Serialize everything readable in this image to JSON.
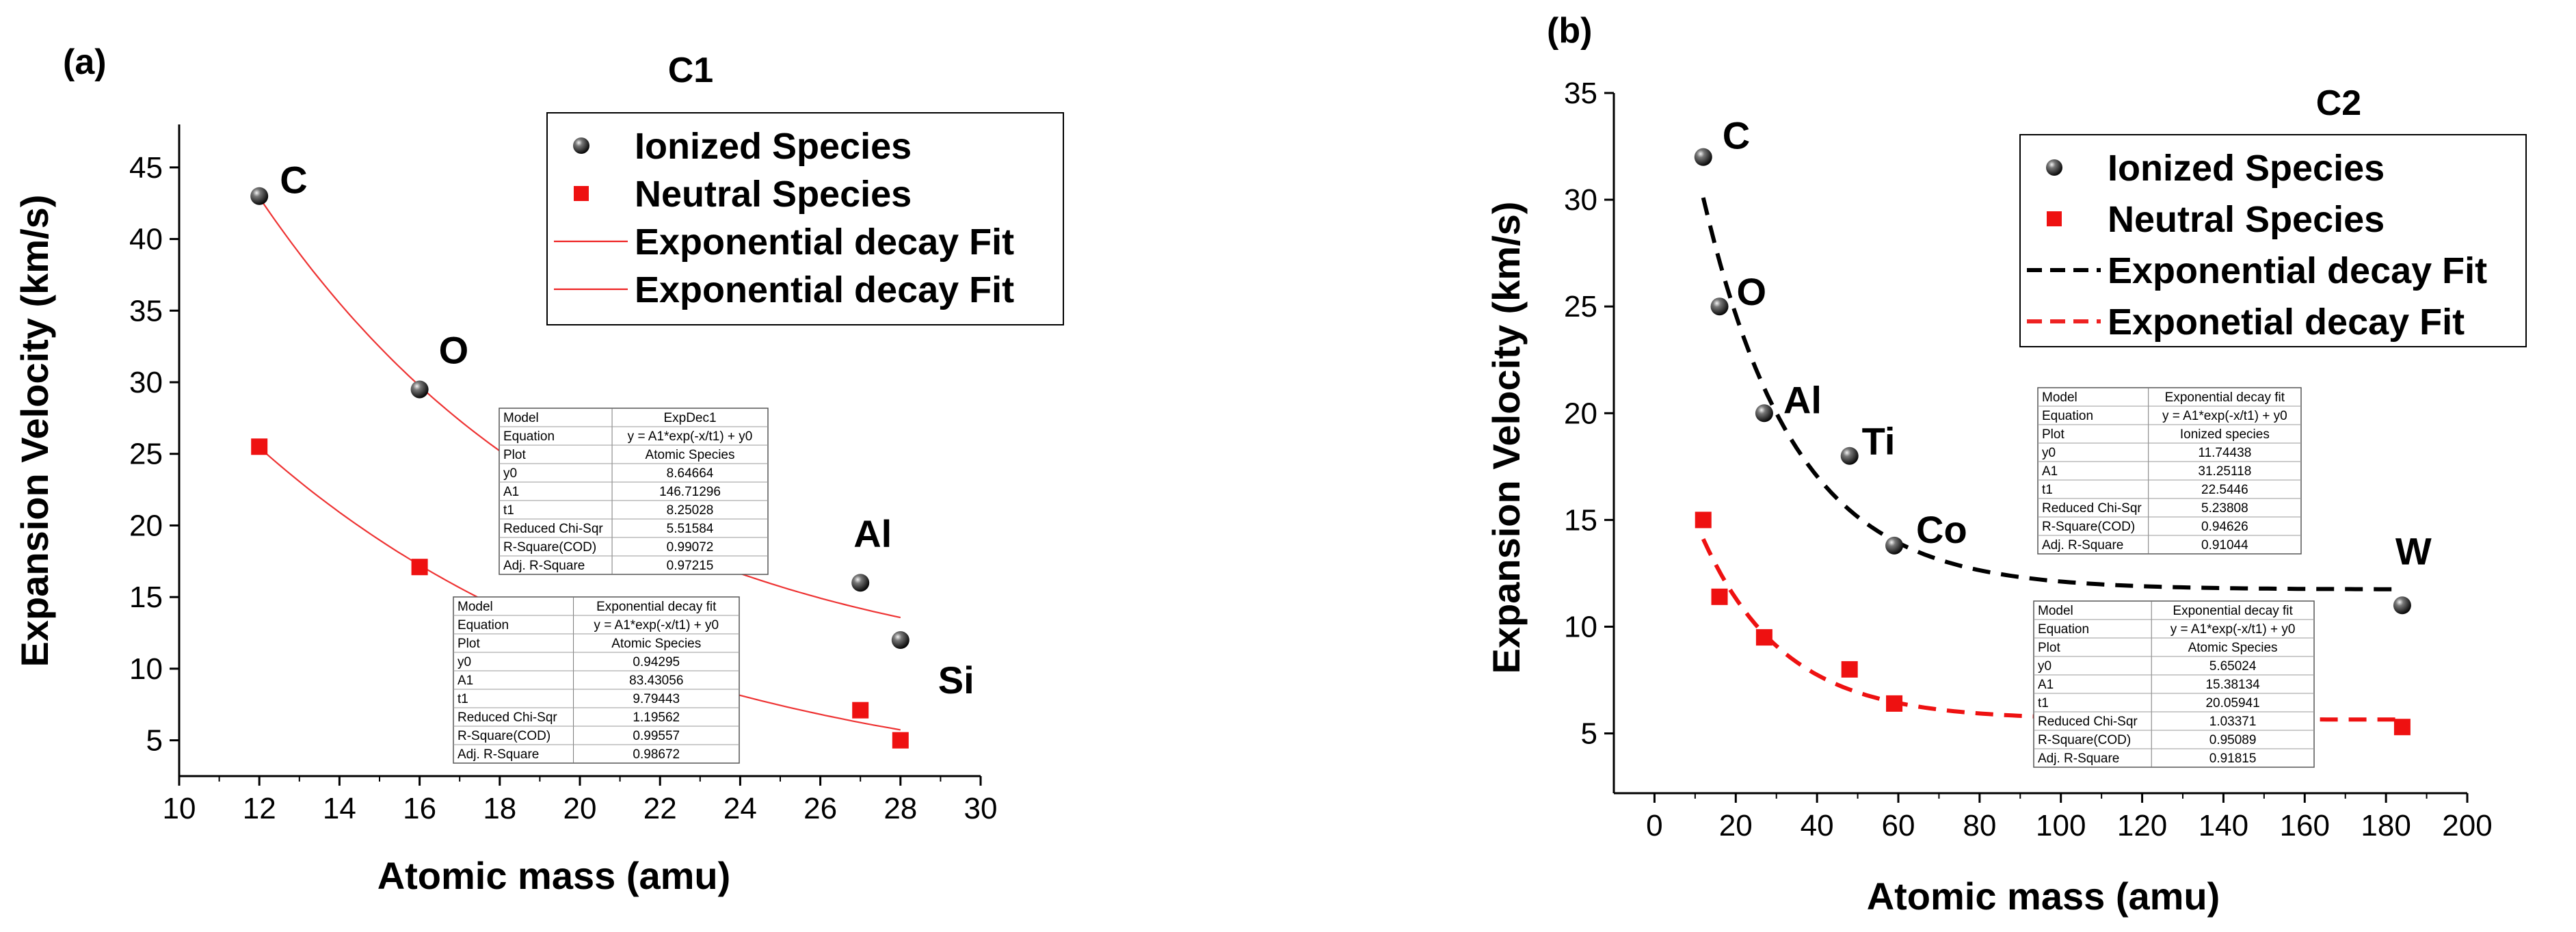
{
  "chart_data": [
    {
      "type": "scatter",
      "panel_label": "(a)",
      "title": "C1",
      "xlabel": "Atomic mass (amu)",
      "ylabel": "Expansion Velocity (km/s)",
      "xlim": [
        10,
        30
      ],
      "ylim": [
        2.5,
        48
      ],
      "x_ticks": [
        10,
        12,
        14,
        16,
        18,
        20,
        22,
        24,
        26,
        28,
        30
      ],
      "y_ticks": [
        5,
        10,
        15,
        20,
        25,
        30,
        35,
        40,
        45
      ],
      "legend": [
        {
          "label": "Ionized Species",
          "marker": "sphere"
        },
        {
          "label": "Neutral Species",
          "marker": "square"
        },
        {
          "label": "Exponential decay Fit",
          "line": "solid-red"
        },
        {
          "label": "Exponential decay Fit",
          "line": "solid-red"
        }
      ],
      "series": [
        {
          "name": "Ionized Species",
          "marker": "sphere",
          "color": "#111111",
          "points": [
            {
              "x": 12,
              "y": 43
            },
            {
              "x": 16,
              "y": 29.5
            },
            {
              "x": 27,
              "y": 16
            },
            {
              "x": 28,
              "y": 12
            }
          ]
        },
        {
          "name": "Neutral Species",
          "marker": "square",
          "color": "#ee1111",
          "points": [
            {
              "x": 12,
              "y": 25.5
            },
            {
              "x": 16,
              "y": 17.1
            },
            {
              "x": 27,
              "y": 7.1
            },
            {
              "x": 28,
              "y": 5
            }
          ]
        }
      ],
      "fits": [
        {
          "name": "Exponential decay Fit (ionized)",
          "y0": 8.64664,
          "A1": 146.71296,
          "t1": 8.25028,
          "x_range": [
            12,
            28
          ],
          "color": "#ee3333",
          "dash": false
        },
        {
          "name": "Exponential decay Fit (neutral)",
          "y0": 0.94295,
          "A1": 83.43056,
          "t1": 9.79443,
          "x_range": [
            12,
            28
          ],
          "color": "#ee3333",
          "dash": false
        }
      ],
      "annotations": [
        {
          "text": "C",
          "x": 12,
          "y": 43
        },
        {
          "text": "O",
          "x": 16,
          "y": 29.5
        },
        {
          "text": "Al",
          "x": 27,
          "y": 16
        },
        {
          "text": "Si",
          "x": 28,
          "y": 12
        }
      ],
      "tables": [
        {
          "rows": [
            [
              "Model",
              "ExpDec1"
            ],
            [
              "Equation",
              "y = A1*exp(-x/t1) + y0"
            ],
            [
              "Plot",
              "Atomic Species"
            ],
            [
              "y0",
              "8.64664"
            ],
            [
              "A1",
              "146.71296"
            ],
            [
              "t1",
              "8.25028"
            ],
            [
              "Reduced Chi-Sqr",
              "5.51584"
            ],
            [
              "R-Square(COD)",
              "0.99072"
            ],
            [
              "Adj. R-Square",
              "0.97215"
            ]
          ]
        },
        {
          "rows": [
            [
              "Model",
              "Exponential decay fit"
            ],
            [
              "Equation",
              "y = A1*exp(-x/t1) + y0"
            ],
            [
              "Plot",
              "Atomic Species"
            ],
            [
              "y0",
              "0.94295"
            ],
            [
              "A1",
              "83.43056"
            ],
            [
              "t1",
              "9.79443"
            ],
            [
              "Reduced Chi-Sqr",
              "1.19562"
            ],
            [
              "R-Square(COD)",
              "0.99557"
            ],
            [
              "Adj. R-Square",
              "0.98672"
            ]
          ]
        }
      ]
    },
    {
      "type": "scatter",
      "panel_label": "(b)",
      "title": "C2",
      "xlabel": "Atomic mass (amu)",
      "ylabel": "Expansion Velocity (km/s)",
      "xlim": [
        -10,
        200
      ],
      "ylim": [
        2.2,
        35
      ],
      "x_ticks": [
        0,
        20,
        40,
        60,
        80,
        100,
        120,
        140,
        160,
        180,
        200
      ],
      "y_ticks": [
        5,
        10,
        15,
        20,
        25,
        30,
        35
      ],
      "legend": [
        {
          "label": "Ionized Species",
          "marker": "sphere"
        },
        {
          "label": "Neutral Species",
          "marker": "square"
        },
        {
          "label": "Exponential decay Fit",
          "line": "dashed-black"
        },
        {
          "label": "Exponetial decay Fit",
          "line": "dashed-red"
        }
      ],
      "series": [
        {
          "name": "Ionized Species",
          "marker": "sphere",
          "color": "#111111",
          "points": [
            {
              "x": 12,
              "y": 32
            },
            {
              "x": 16,
              "y": 25
            },
            {
              "x": 27,
              "y": 20
            },
            {
              "x": 48,
              "y": 18
            },
            {
              "x": 59,
              "y": 13.8
            },
            {
              "x": 184,
              "y": 11
            }
          ]
        },
        {
          "name": "Neutral Species",
          "marker": "square",
          "color": "#ee1111",
          "points": [
            {
              "x": 12,
              "y": 15
            },
            {
              "x": 16,
              "y": 11.4
            },
            {
              "x": 27,
              "y": 9.5
            },
            {
              "x": 48,
              "y": 8
            },
            {
              "x": 59,
              "y": 6.4
            },
            {
              "x": 184,
              "y": 5.3
            }
          ]
        }
      ],
      "fits": [
        {
          "name": "Exponential decay Fit (ionized)",
          "y0": 11.74438,
          "A1": 31.25118,
          "t1": 22.5446,
          "x_range": [
            12,
            184
          ],
          "color": "#000000",
          "dash": true
        },
        {
          "name": "Exponetial decay Fit (neutral)",
          "y0": 5.65024,
          "A1": 15.38134,
          "t1": 20.05941,
          "x_range": [
            12,
            184
          ],
          "color": "#ee1111",
          "dash": true
        }
      ],
      "annotations": [
        {
          "text": "C",
          "x": 12,
          "y": 32
        },
        {
          "text": "O",
          "x": 16,
          "y": 25
        },
        {
          "text": "Al",
          "x": 27,
          "y": 20
        },
        {
          "text": "Ti",
          "x": 48,
          "y": 18
        },
        {
          "text": "Co",
          "x": 59,
          "y": 13.8
        },
        {
          "text": "W",
          "x": 184,
          "y": 11
        }
      ],
      "tables": [
        {
          "rows": [
            [
              "Model",
              "Exponential decay fit"
            ],
            [
              "Equation",
              "y = A1*exp(-x/t1) + y0"
            ],
            [
              "Plot",
              "Ionized species"
            ],
            [
              "y0",
              "11.74438"
            ],
            [
              "A1",
              "31.25118"
            ],
            [
              "t1",
              "22.5446"
            ],
            [
              "Reduced Chi-Sqr",
              "5.23808"
            ],
            [
              "R-Square(COD)",
              "0.94626"
            ],
            [
              "Adj. R-Square",
              "0.91044"
            ]
          ]
        },
        {
          "rows": [
            [
              "Model",
              "Exponential decay fit"
            ],
            [
              "Equation",
              "y = A1*exp(-x/t1) + y0"
            ],
            [
              "Plot",
              "Atomic Species"
            ],
            [
              "y0",
              "5.65024"
            ],
            [
              "A1",
              "15.38134"
            ],
            [
              "t1",
              "20.05941"
            ],
            [
              "Reduced Chi-Sqr",
              "1.03371"
            ],
            [
              "R-Square(COD)",
              "0.95089"
            ],
            [
              "Adj. R-Square",
              "0.91815"
            ]
          ]
        }
      ]
    }
  ]
}
